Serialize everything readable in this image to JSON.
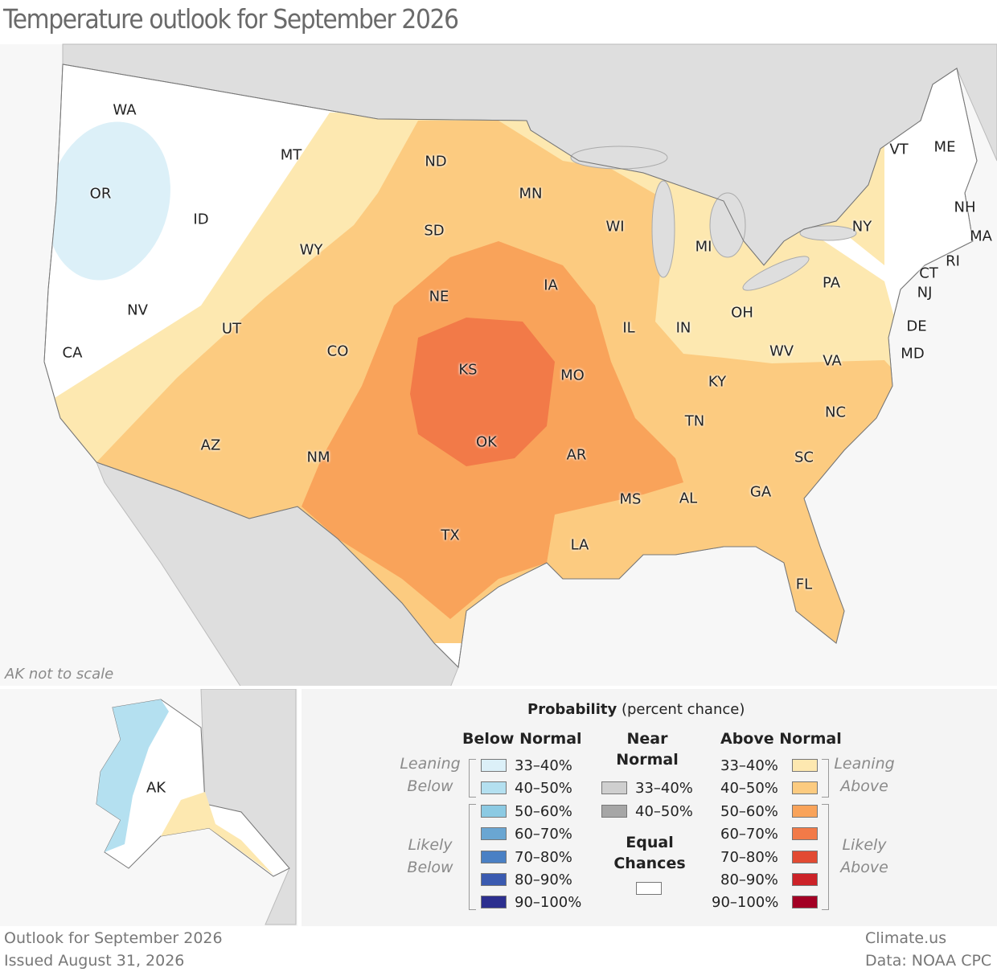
{
  "title": "Temperature outlook for September 2026",
  "map": {
    "states": [
      "WA",
      "OR",
      "ID",
      "MT",
      "ND",
      "MN",
      "SD",
      "WY",
      "NV",
      "UT",
      "CO",
      "NE",
      "IA",
      "WI",
      "MI",
      "NY",
      "VT",
      "ME",
      "NH",
      "MA",
      "RI",
      "CT",
      "NJ",
      "PA",
      "DE",
      "MD",
      "OH",
      "IN",
      "IL",
      "KS",
      "MO",
      "KY",
      "WV",
      "VA",
      "CA",
      "AZ",
      "NM",
      "OK",
      "AR",
      "TN",
      "NC",
      "SC",
      "GA",
      "AL",
      "MS",
      "LA",
      "TX",
      "FL"
    ],
    "inset_note": "AK not to scale",
    "alaska_label": "AK"
  },
  "legend": {
    "title": "Probability",
    "subtitle": "(percent chance)",
    "below_normal": {
      "heading": "Below Normal",
      "leaning": "Leaning Below",
      "likely": "Likely Below",
      "bins": [
        {
          "label": "33–40%",
          "color": "#dcf0f8"
        },
        {
          "label": "40–50%",
          "color": "#b4e0f0"
        },
        {
          "label": "50–60%",
          "color": "#8ccae3"
        },
        {
          "label": "60–70%",
          "color": "#6aa6d2"
        },
        {
          "label": "70–80%",
          "color": "#4a80c4"
        },
        {
          "label": "80–90%",
          "color": "#3a5ab0"
        },
        {
          "label": "90–100%",
          "color": "#2c2f8f"
        }
      ]
    },
    "near_normal": {
      "heading": "Near Normal",
      "bins": [
        {
          "label": "33–40%",
          "color": "#cfcfcf"
        },
        {
          "label": "40–50%",
          "color": "#a6a6a6"
        }
      ]
    },
    "equal_chances": {
      "heading": "Equal Chances",
      "color": "#ffffff"
    },
    "above_normal": {
      "heading": "Above Normal",
      "leaning": "Leaning Above",
      "likely": "Likely Above",
      "bins": [
        {
          "label": "33–40%",
          "color": "#fde8b0"
        },
        {
          "label": "40–50%",
          "color": "#fccb80"
        },
        {
          "label": "50–60%",
          "color": "#f9a35a"
        },
        {
          "label": "60–70%",
          "color": "#f27a48"
        },
        {
          "label": "70–80%",
          "color": "#e24a32"
        },
        {
          "label": "80–90%",
          "color": "#cc2228"
        },
        {
          "label": "90–100%",
          "color": "#a30024"
        }
      ]
    }
  },
  "footer": {
    "outlook": "Outlook for September 2026",
    "issued": "Issued August 31, 2026",
    "source": "Climate.us",
    "data_credit": "Data: NOAA CPC"
  }
}
